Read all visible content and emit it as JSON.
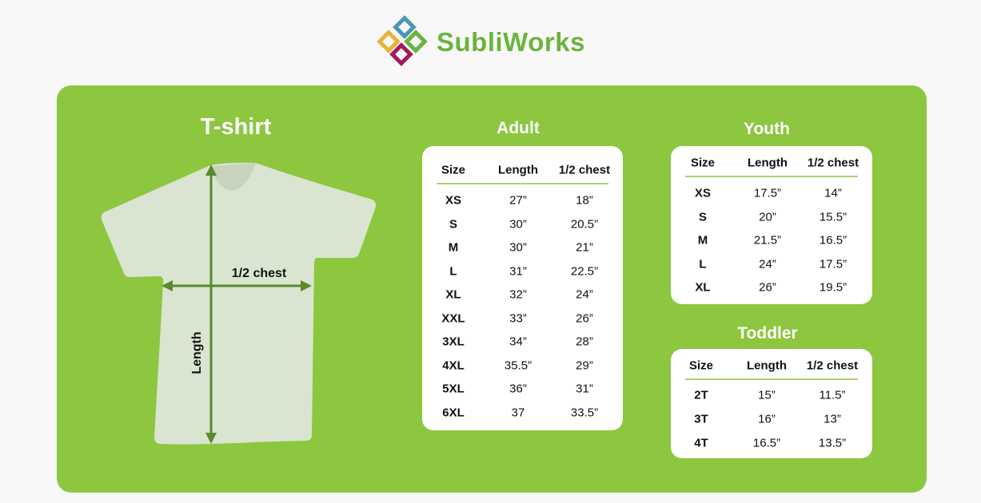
{
  "brand": {
    "name": "SubliWorks",
    "colors": {
      "green": "#6cb33f",
      "yellow": "#e8b33a",
      "blue": "#4a97b2",
      "maroon": "#a3195b"
    }
  },
  "panel_color": "#8dc63f",
  "tshirt": {
    "title": "T-shirt",
    "chest_label": "1/2 chest",
    "length_label": "Length"
  },
  "adult": {
    "title": "Adult",
    "headers": [
      "Size",
      "Length",
      "1/2 chest"
    ],
    "rows": [
      [
        "XS",
        "27”",
        "18”"
      ],
      [
        "S",
        "30”",
        "20.5”"
      ],
      [
        "M",
        "30”",
        "21”"
      ],
      [
        "L",
        "31”",
        "22.5”"
      ],
      [
        "XL",
        "32”",
        "24”"
      ],
      [
        "XXL",
        "33”",
        "26”"
      ],
      [
        "3XL",
        "34”",
        "28”"
      ],
      [
        "4XL",
        "35.5”",
        "29”"
      ],
      [
        "5XL",
        "36”",
        "31”"
      ],
      [
        "6XL",
        "37",
        "33.5”"
      ]
    ]
  },
  "youth": {
    "title": "Youth",
    "headers": [
      "Size",
      "Length",
      "1/2 chest"
    ],
    "rows": [
      [
        "XS",
        "17.5”",
        "14”"
      ],
      [
        "S",
        "20”",
        "15.5”"
      ],
      [
        "M",
        "21.5”",
        "16.5”"
      ],
      [
        "L",
        "24”",
        "17.5”"
      ],
      [
        "XL",
        "26”",
        "19.5”"
      ]
    ]
  },
  "toddler": {
    "title": "Toddler",
    "headers": [
      "Size",
      "Length",
      "1/2 chest"
    ],
    "rows": [
      [
        "2T",
        "15”",
        "11.5”"
      ],
      [
        "3T",
        "16”",
        "13”"
      ],
      [
        "4T",
        "16.5”",
        "13.5”"
      ]
    ]
  }
}
